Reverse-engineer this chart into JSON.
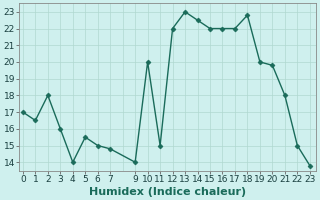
{
  "x": [
    0,
    1,
    2,
    3,
    4,
    5,
    6,
    7,
    9,
    10,
    11,
    12,
    13,
    14,
    15,
    16,
    17,
    18,
    19,
    20,
    21,
    22,
    23
  ],
  "y": [
    17,
    16.5,
    18,
    16,
    14,
    15.5,
    15,
    14.8,
    14,
    20,
    15,
    22,
    23,
    22.5,
    22,
    22,
    22,
    22.8,
    20,
    19.8,
    18,
    15,
    13.8
  ],
  "line_color": "#1a6b5a",
  "marker": "D",
  "marker_size": 2.5,
  "linewidth": 1.0,
  "bg_color": "#cff0ee",
  "grid_color": "#b0d8d0",
  "xlabel": "Humidex (Indice chaleur)",
  "xlabel_fontsize": 8,
  "tick_fontsize": 6.5,
  "ylim": [
    13.5,
    23.5
  ],
  "yticks": [
    14,
    15,
    16,
    17,
    18,
    19,
    20,
    21,
    22,
    23
  ],
  "xtick_positions": [
    0,
    1,
    2,
    3,
    4,
    5,
    6,
    7,
    9,
    10,
    11,
    12,
    13,
    14,
    15,
    16,
    17,
    18,
    19,
    20,
    21,
    22,
    23
  ],
  "xtick_labels": [
    "0",
    "1",
    "2",
    "3",
    "4",
    "5",
    "6",
    "7",
    "9",
    "10",
    "11",
    "12",
    "13",
    "14",
    "15",
    "16",
    "17",
    "18",
    "19",
    "20",
    "21",
    "22",
    "23"
  ],
  "xlim": [
    -0.3,
    23.5
  ]
}
